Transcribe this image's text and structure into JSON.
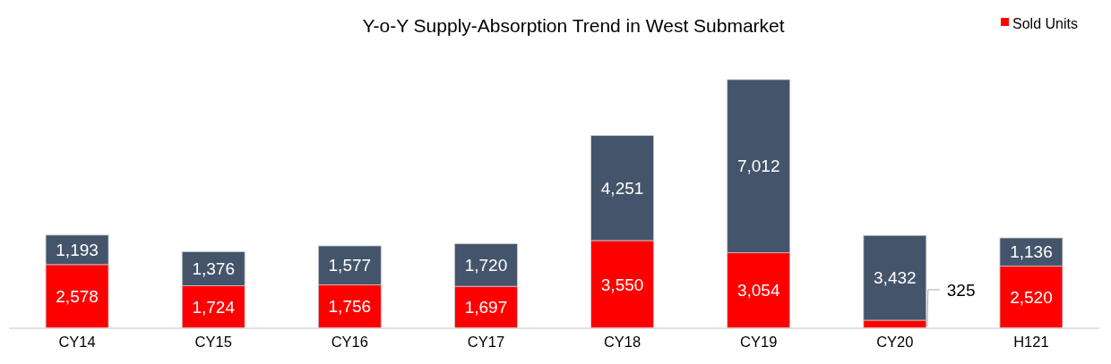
{
  "chart_data": {
    "type": "bar",
    "title": "Y-o-Y Supply-Absorption Trend in West Submarket",
    "categories": [
      "CY14",
      "CY15",
      "CY16",
      "CY17",
      "CY18",
      "CY19",
      "CY20",
      "H121"
    ],
    "stacked": true,
    "legend": "top right",
    "series": [
      {
        "name": "Sold Units",
        "color": "#ff0000",
        "values": [
          2578,
          1724,
          1756,
          1697,
          3550,
          3054,
          325,
          2520
        ],
        "value_labels": [
          "2,578",
          "1,724",
          "1,756",
          "1,697",
          "3,550",
          "3,054",
          "325",
          "2,520"
        ]
      },
      {
        "color": "#44546a",
        "values": [
          1193,
          1376,
          1577,
          1720,
          4251,
          7012,
          3432,
          1136
        ],
        "value_labels": [
          "1,193",
          "1,376",
          "1,577",
          "1,720",
          "4,251",
          "7,012",
          "3,432",
          "1,136"
        ]
      }
    ]
  }
}
